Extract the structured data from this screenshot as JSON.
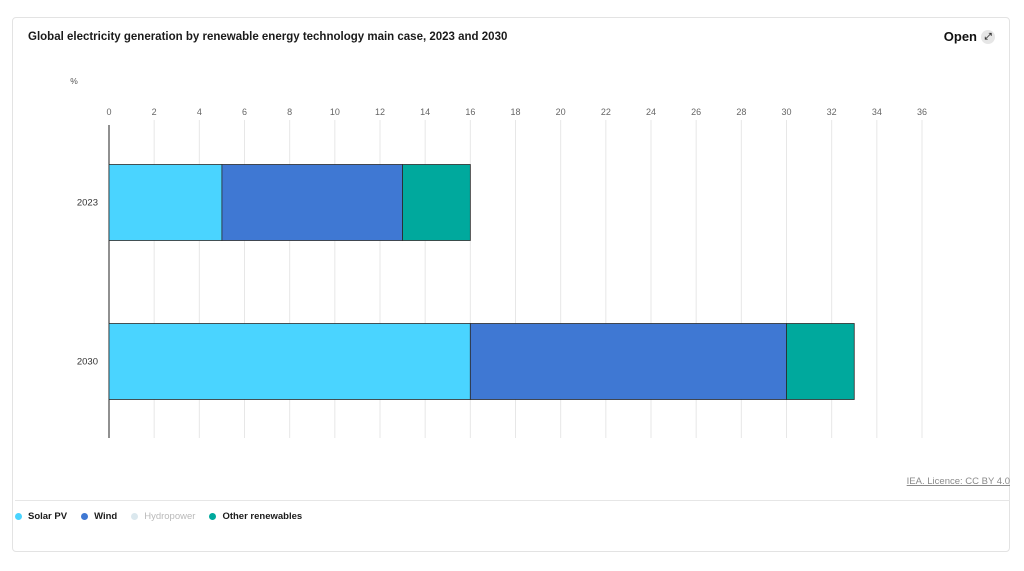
{
  "header": {
    "title": "Global electricity generation by renewable energy technology main case, 2023 and 2030",
    "open_label": "Open",
    "open_icon": "external-link-icon"
  },
  "licence": "IEA. Licence: CC BY 4.0",
  "legend": [
    {
      "label": "Solar PV",
      "color": "#4ad4ff",
      "muted": false
    },
    {
      "label": "Wind",
      "color": "#3f78d3",
      "muted": false
    },
    {
      "label": "Hydropower",
      "color": "#dbe8ee",
      "muted": true
    },
    {
      "label": "Other renewables",
      "color": "#00a99d",
      "muted": false
    }
  ],
  "chart_data": {
    "type": "bar",
    "orientation": "horizontal",
    "stacked": true,
    "title": "Global electricity generation by renewable energy technology main case, 2023 and 2030",
    "unit_label": "%",
    "categories": [
      "2023",
      "2030"
    ],
    "series": [
      {
        "name": "Solar PV",
        "color": "#4ad4ff",
        "values": [
          5,
          16
        ]
      },
      {
        "name": "Wind",
        "color": "#3f78d3",
        "values": [
          8,
          14
        ]
      },
      {
        "name": "Hydropower",
        "color": "#dbe8ee",
        "values": [
          0,
          0
        ]
      },
      {
        "name": "Other renewables",
        "color": "#00a99d",
        "values": [
          3,
          3
        ]
      }
    ],
    "xlim": [
      0,
      36
    ],
    "xticks": [
      0,
      2,
      4,
      6,
      8,
      10,
      12,
      14,
      16,
      18,
      20,
      22,
      24,
      26,
      28,
      30,
      32,
      34,
      36
    ],
    "grid": true,
    "legend_position": "bottom-left"
  }
}
